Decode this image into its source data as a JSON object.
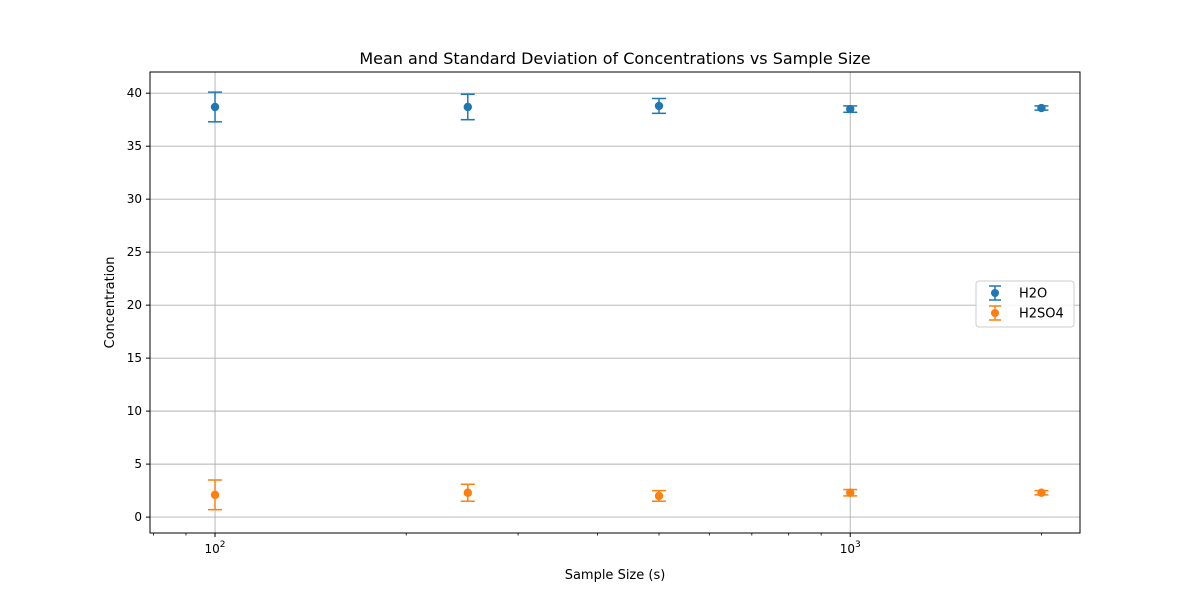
{
  "chart_data": {
    "type": "scatter",
    "title": "Mean and Standard Deviation of Concentrations vs Sample Size",
    "xlabel": "Sample Size (s)",
    "ylabel": "Concentration",
    "x_scale": "log",
    "xlim": [
      79,
      2300
    ],
    "ylim": [
      -1.5,
      42
    ],
    "x_tick_labels": [
      {
        "value": 100,
        "base": "10",
        "exp": "2"
      },
      {
        "value": 1000,
        "base": "10",
        "exp": "3"
      }
    ],
    "y_ticks": [
      0,
      5,
      10,
      15,
      20,
      25,
      30,
      35,
      40
    ],
    "grid": true,
    "legend_position": "center-right",
    "series": [
      {
        "name": "H2O",
        "color": "#1f77b4",
        "x": [
          100,
          250,
          500,
          1000,
          2000
        ],
        "y": [
          38.7,
          38.7,
          38.8,
          38.5,
          38.6
        ],
        "error": [
          1.4,
          1.2,
          0.7,
          0.3,
          0.2
        ]
      },
      {
        "name": "H2SO4",
        "color": "#ff7f0e",
        "x": [
          100,
          250,
          500,
          1000,
          2000
        ],
        "y": [
          2.1,
          2.3,
          2.0,
          2.3,
          2.3
        ],
        "error": [
          1.4,
          0.8,
          0.5,
          0.3,
          0.2
        ]
      }
    ]
  }
}
